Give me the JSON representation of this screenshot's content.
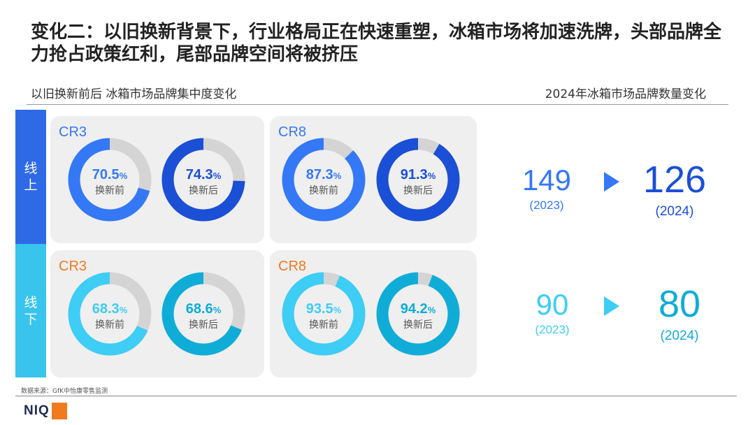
{
  "title": "变化二：以旧换新背景下，行业格局正在快速重塑，冰箱市场将加速洗牌，头部品牌全力抢占政策红利，尾部品牌空间将被挤压",
  "subtitle_left": "以旧换新前后 冰箱市场品牌集中度变化",
  "subtitle_right": "2024年冰箱市场品牌数量变化",
  "rows": {
    "online": "线上",
    "offline": "线下"
  },
  "colors": {
    "online_before": "#3478f6",
    "online_after": "#1a4fd6",
    "offline_before": "#3dcdf5",
    "offline_after": "#10acd8",
    "grey": "#d4d4d4",
    "orange": "#f07a1f"
  },
  "chart_data": {
    "type": "donut",
    "unit": "%",
    "panels": [
      {
        "row": "线上",
        "metric": "CR3",
        "donuts": [
          {
            "value": 70.5,
            "label": "换新前"
          },
          {
            "value": 74.3,
            "label": "换新后"
          }
        ]
      },
      {
        "row": "线上",
        "metric": "CR8",
        "donuts": [
          {
            "value": 87.3,
            "label": "换新前"
          },
          {
            "value": 91.3,
            "label": "换新后"
          }
        ]
      },
      {
        "row": "线下",
        "metric": "CR3",
        "donuts": [
          {
            "value": 68.3,
            "label": "换新前"
          },
          {
            "value": 68.6,
            "label": "换新后"
          }
        ]
      },
      {
        "row": "线下",
        "metric": "CR8",
        "donuts": [
          {
            "value": 93.5,
            "label": "换新前"
          },
          {
            "value": 94.2,
            "label": "换新后"
          }
        ]
      }
    ]
  },
  "brand_counts": {
    "online": {
      "from": "149",
      "from_year": "(2023)",
      "to": "126",
      "to_year": "(2024)"
    },
    "offline": {
      "from": "90",
      "from_year": "(2023)",
      "to": "80",
      "to_year": "(2024)"
    }
  },
  "source": "数据来源：GfK中怡康零售监测",
  "logo": "NIQ"
}
